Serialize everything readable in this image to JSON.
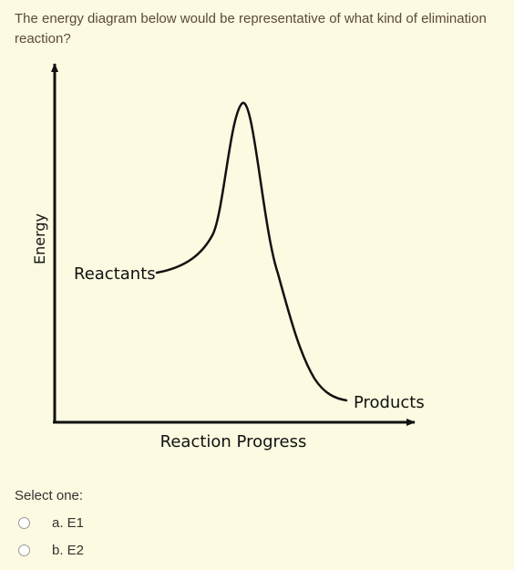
{
  "question": {
    "text": "The energy diagram below would be representative of what kind of elimination reaction?"
  },
  "diagram": {
    "y_axis_label": "Energy",
    "x_axis_label": "Reaction Progress",
    "reactants_label": "Reactants",
    "products_label": "Products"
  },
  "answer": {
    "prompt": "Select one:",
    "options": [
      {
        "label": "a. E1"
      },
      {
        "label": "b. E2"
      }
    ]
  }
}
